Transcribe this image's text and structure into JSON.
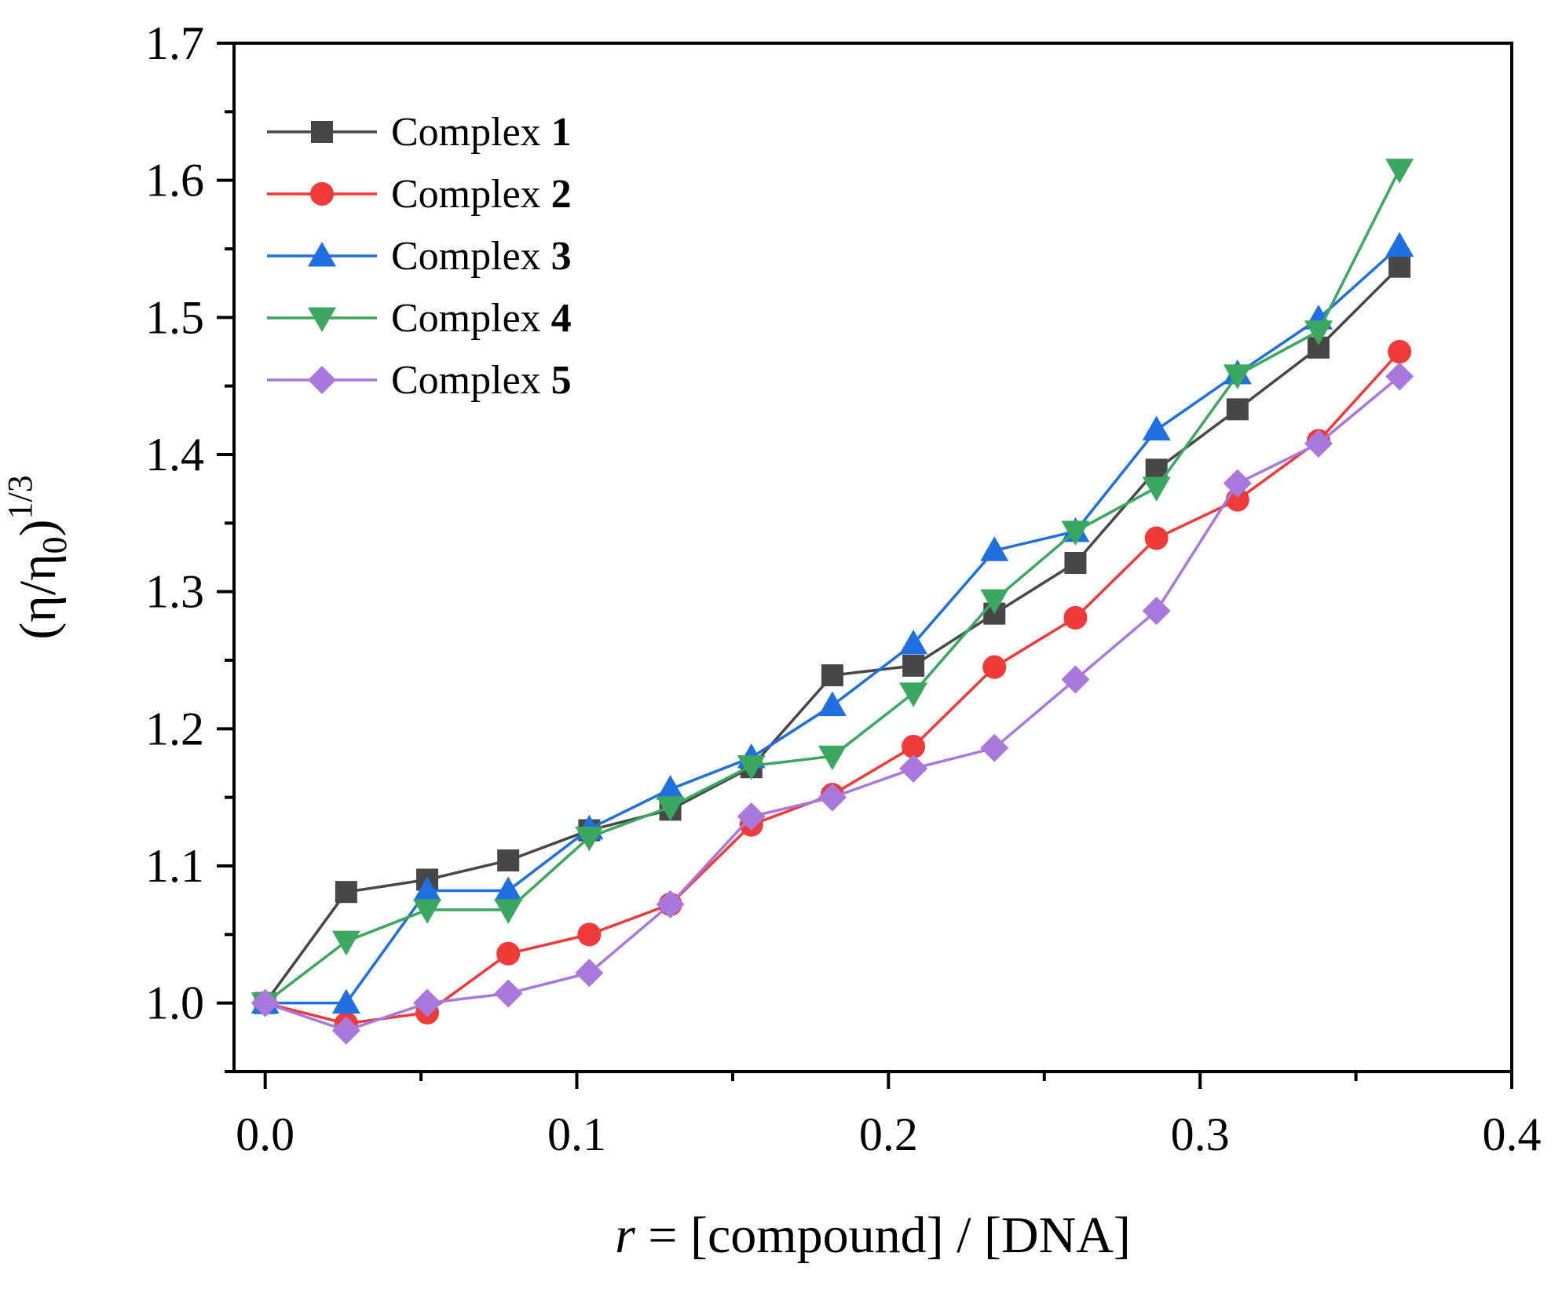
{
  "chart_data": {
    "type": "line",
    "title": "",
    "xlabel": {
      "italic": "r",
      "rest": " = [compound] / [DNA]"
    },
    "ylabel": {
      "base": "(η/η",
      "sub": "0",
      "close": ")",
      "sup": "1/3"
    },
    "xlim": [
      -0.01,
      0.4
    ],
    "ylim": [
      0.95,
      1.7
    ],
    "x_ticks": [
      "0.0",
      "0.1",
      "0.2",
      "0.3",
      "0.4"
    ],
    "y_ticks": [
      "1.0",
      "1.1",
      "1.2",
      "1.3",
      "1.4",
      "1.5",
      "1.6",
      "1.7"
    ],
    "x": [
      0,
      0.026,
      0.052,
      0.078,
      0.104,
      0.13,
      0.156,
      0.182,
      0.208,
      0.234,
      0.26,
      0.286,
      0.312,
      0.338,
      0.364
    ],
    "legend_position": "top-left",
    "series": [
      {
        "name": "Complex ",
        "number": "1",
        "color": "#474747",
        "marker": "square",
        "values": [
          1.0,
          1.081,
          1.09,
          1.104,
          1.126,
          1.141,
          1.172,
          1.239,
          1.246,
          1.284,
          1.321,
          1.389,
          1.433,
          1.478,
          1.537
        ]
      },
      {
        "name": "Complex ",
        "number": "2",
        "color": "#f03a3a",
        "marker": "circle",
        "values": [
          1.0,
          0.985,
          0.993,
          1.036,
          1.05,
          1.072,
          1.13,
          1.152,
          1.187,
          1.245,
          1.281,
          1.339,
          1.367,
          1.41,
          1.475
        ]
      },
      {
        "name": "Complex ",
        "number": "3",
        "color": "#1f6fe0",
        "marker": "triangle-up",
        "values": [
          1.0,
          1.0,
          1.082,
          1.082,
          1.127,
          1.156,
          1.179,
          1.217,
          1.262,
          1.33,
          1.344,
          1.418,
          1.459,
          1.499,
          1.552
        ]
      },
      {
        "name": "Complex ",
        "number": "4",
        "color": "#3ca75e",
        "marker": "triangle-down",
        "values": [
          1.0,
          1.045,
          1.068,
          1.068,
          1.121,
          1.143,
          1.173,
          1.18,
          1.226,
          1.294,
          1.344,
          1.376,
          1.458,
          1.49,
          1.608
        ]
      },
      {
        "name": "Complex ",
        "number": "5",
        "color": "#a978dc",
        "marker": "diamond",
        "values": [
          1.0,
          0.98,
          1.0,
          1.007,
          1.022,
          1.072,
          1.136,
          1.15,
          1.171,
          1.186,
          1.236,
          1.286,
          1.379,
          1.408,
          1.457
        ]
      }
    ]
  }
}
